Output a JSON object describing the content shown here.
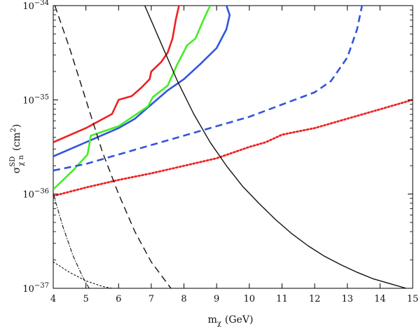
{
  "chart_data": {
    "type": "line",
    "title": "",
    "xlabel": "m",
    "xlabel_sub": "χ",
    "xlabel_unit": "(GeV)",
    "ylabel": "σ",
    "ylabel_sup": "SD",
    "ylabel_sub": "χ n",
    "ylabel_unit": "(cm",
    "ylabel_unit_sup": "2",
    "ylabel_unit_close": ")",
    "xlim": [
      4,
      15
    ],
    "ylim_log10": [
      -37,
      -34
    ],
    "y_scale": "log",
    "grid": false,
    "legend": "none",
    "x_ticks": [
      "4",
      "5",
      "6",
      "7",
      "8",
      "9",
      "10",
      "11",
      "12",
      "13",
      "14",
      "15"
    ],
    "y_ticks": [
      {
        "base": "10",
        "exp": "−37",
        "log10": -37
      },
      {
        "base": "10",
        "exp": "−36",
        "log10": -36
      },
      {
        "base": "10",
        "exp": "−35",
        "log10": -35
      },
      {
        "base": "10",
        "exp": "−34",
        "log10": -34
      }
    ],
    "series": [
      {
        "color": "#ee2222",
        "style": "solid",
        "width": 2.6,
        "x": [
          4.0,
          5.0,
          5.8,
          6.0,
          6.4,
          6.7,
          6.95,
          7.0,
          7.3,
          7.5,
          7.65,
          7.75,
          7.85
        ],
        "log10y": [
          -35.45,
          -35.3,
          -35.15,
          -35.0,
          -34.96,
          -34.87,
          -34.78,
          -34.7,
          -34.6,
          -34.5,
          -34.35,
          -34.15,
          -34.0
        ]
      },
      {
        "color": "#3355dd",
        "style": "solid",
        "width": 2.6,
        "x": [
          4.0,
          5.0,
          6.0,
          6.5,
          7.0,
          7.5,
          8.0,
          8.5,
          9.0,
          9.3,
          9.4,
          9.3
        ],
        "log10y": [
          -35.6,
          -35.45,
          -35.3,
          -35.2,
          -35.05,
          -34.9,
          -34.78,
          -34.62,
          -34.45,
          -34.25,
          -34.1,
          -34.0
        ]
      },
      {
        "color": "#44ee22",
        "style": "solid",
        "width": 2.6,
        "x": [
          4.0,
          4.6,
          5.05,
          5.15,
          6.0,
          6.9,
          7.05,
          7.5,
          7.8,
          8.1,
          8.35,
          8.6,
          8.8
        ],
        "log10y": [
          -35.95,
          -35.75,
          -35.58,
          -35.38,
          -35.28,
          -35.07,
          -34.97,
          -34.85,
          -34.62,
          -34.42,
          -34.35,
          -34.15,
          -34.0
        ]
      },
      {
        "color": "#3355dd",
        "style": "dashed",
        "width": 2.6,
        "x": [
          4.0,
          5.0,
          6.0,
          7.0,
          8.0,
          9.0,
          10.0,
          11.0,
          12.0,
          12.5,
          13.0,
          13.3,
          13.45
        ],
        "log10y": [
          -35.75,
          -35.68,
          -35.58,
          -35.48,
          -35.38,
          -35.28,
          -35.18,
          -35.05,
          -34.92,
          -34.8,
          -34.55,
          -34.25,
          -34.0
        ]
      },
      {
        "color": "#ee2222",
        "style": "dotted",
        "width": 2.8,
        "x": [
          4.0,
          5.0,
          6.0,
          7.0,
          8.0,
          9.0,
          10.0,
          10.5,
          11.0,
          12.0,
          13.0,
          14.0,
          15.0
        ],
        "log10y": [
          -36.02,
          -35.93,
          -35.85,
          -35.78,
          -35.7,
          -35.62,
          -35.5,
          -35.45,
          -35.37,
          -35.3,
          -35.2,
          -35.1,
          -35.0
        ]
      },
      {
        "color": "#111111",
        "style": "solid",
        "width": 1.4,
        "x": [
          6.8,
          7.3,
          7.8,
          8.3,
          8.8,
          9.3,
          9.8,
          10.3,
          10.8,
          11.3,
          11.8,
          12.3,
          12.8,
          13.3,
          13.8,
          14.3,
          14.8
        ],
        "log10y": [
          -34.0,
          -34.4,
          -34.8,
          -35.15,
          -35.45,
          -35.7,
          -35.92,
          -36.1,
          -36.27,
          -36.42,
          -36.55,
          -36.66,
          -36.75,
          -36.83,
          -36.9,
          -36.95,
          -37.0
        ]
      },
      {
        "color": "#111111",
        "style": "dashed",
        "width": 1.4,
        "x": [
          4.05,
          4.5,
          5.0,
          5.5,
          6.0,
          6.5,
          7.0,
          7.6
        ],
        "log10y": [
          -34.0,
          -34.45,
          -35.0,
          -35.55,
          -36.0,
          -36.4,
          -36.72,
          -37.0
        ]
      },
      {
        "color": "#111111",
        "style": "dashdot",
        "width": 1.1,
        "x": [
          4.0,
          4.3,
          4.6,
          4.9,
          5.1
        ],
        "log10y": [
          -36.0,
          -36.35,
          -36.65,
          -36.88,
          -37.0
        ]
      },
      {
        "color": "#111111",
        "style": "dotted",
        "width": 1.1,
        "x": [
          4.0,
          4.5,
          5.0,
          5.5,
          5.8
        ],
        "log10y": [
          -36.72,
          -36.83,
          -36.92,
          -36.98,
          -37.0
        ]
      }
    ]
  }
}
